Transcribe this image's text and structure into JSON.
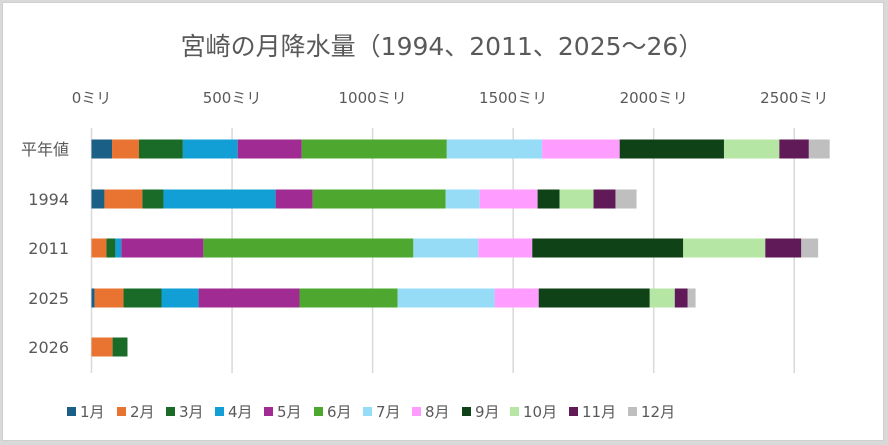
{
  "chart_data": {
    "type": "bar",
    "orientation": "horizontal",
    "stacked": true,
    "title": "宮崎の月降水量（1994、2011、2025～26）",
    "xlabel": "",
    "ylabel": "",
    "xlim": [
      0,
      2600
    ],
    "x_ticks": [
      0,
      500,
      1000,
      1500,
      2000,
      2500
    ],
    "x_tick_labels": [
      "0ミリ",
      "500ミリ",
      "1000ミリ",
      "1500ミリ",
      "2000ミリ",
      "2500ミリ"
    ],
    "x_axis_position": "top",
    "grid": true,
    "legend_position": "bottom",
    "categories": [
      "平年値",
      "1994",
      "2011",
      "2025",
      "2026"
    ],
    "series": [
      {
        "name": "1月",
        "color": "#1a5f86",
        "values": [
          73,
          46,
          0,
          11,
          0
        ]
      },
      {
        "name": "2月",
        "color": "#e97432",
        "values": [
          96,
          135,
          53,
          103,
          75
        ]
      },
      {
        "name": "3月",
        "color": "#1a6b27",
        "values": [
          156,
          75,
          32,
          135,
          53
        ]
      },
      {
        "name": "4月",
        "color": "#119fd6",
        "values": [
          195,
          399,
          21,
          132,
          0
        ]
      },
      {
        "name": "5月",
        "color": "#a02b92",
        "values": [
          228,
          132,
          292,
          359,
          0
        ]
      },
      {
        "name": "6月",
        "color": "#4ea72e",
        "values": [
          516,
          473,
          747,
          349,
          0
        ]
      },
      {
        "name": "7月",
        "color": "#96dcf7",
        "values": [
          339,
          121,
          231,
          345,
          0
        ]
      },
      {
        "name": "8月",
        "color": "#ff9cff",
        "values": [
          276,
          206,
          192,
          157,
          0
        ]
      },
      {
        "name": "9月",
        "color": "#104217",
        "values": [
          371,
          78,
          537,
          395,
          0
        ]
      },
      {
        "name": "10月",
        "color": "#b5e6a3",
        "values": [
          197,
          121,
          292,
          89,
          0
        ]
      },
      {
        "name": "11月",
        "color": "#601a57",
        "values": [
          105,
          78,
          128,
          46,
          0
        ]
      },
      {
        "name": "12月",
        "color": "#bfbfbf",
        "values": [
          74,
          75,
          60,
          28,
          0
        ]
      }
    ]
  }
}
